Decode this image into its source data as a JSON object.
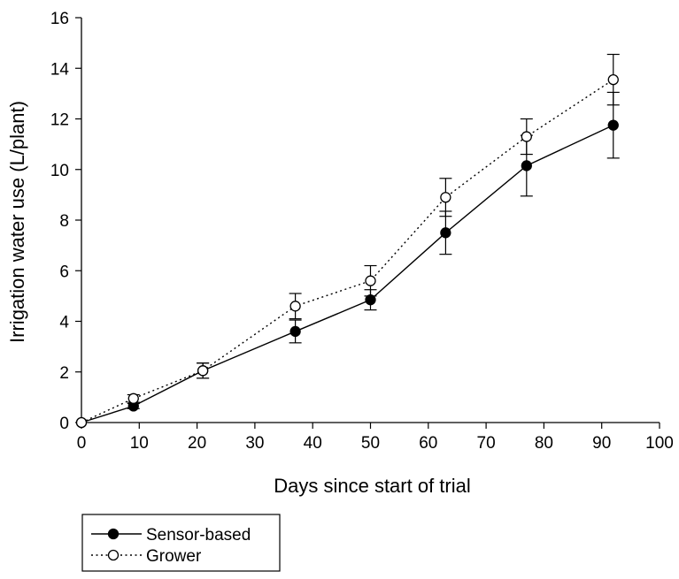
{
  "chart_data": {
    "type": "line",
    "title": "",
    "xlabel": "Days since start of trial",
    "ylabel": "Irrigation water use (L/plant)",
    "xlim": [
      0,
      100
    ],
    "ylim": [
      0,
      16
    ],
    "x_ticks": [
      0,
      10,
      20,
      30,
      40,
      50,
      60,
      70,
      80,
      90,
      100
    ],
    "y_ticks": [
      0,
      2,
      4,
      6,
      8,
      10,
      12,
      14,
      16
    ],
    "grid": false,
    "legend_position": "below-left",
    "series": [
      {
        "name": "Sensor-based",
        "marker": "filled-circle",
        "line_style": "solid",
        "color": "#000000",
        "x": [
          0,
          9,
          21,
          37,
          50,
          63,
          77,
          92
        ],
        "y": [
          0,
          0.65,
          2.05,
          3.6,
          4.85,
          7.5,
          10.15,
          11.75
        ],
        "error": [
          0,
          0.1,
          0.3,
          0.45,
          0.4,
          0.85,
          1.2,
          1.3
        ]
      },
      {
        "name": "Grower",
        "marker": "open-circle",
        "line_style": "dotted",
        "color": "#000000",
        "x": [
          0,
          9,
          21,
          37,
          50,
          63,
          77,
          92
        ],
        "y": [
          0,
          0.95,
          2.05,
          4.6,
          5.6,
          8.9,
          11.3,
          13.55
        ],
        "error": [
          0,
          0.15,
          0.3,
          0.5,
          0.6,
          0.75,
          0.7,
          1.0
        ]
      }
    ]
  }
}
